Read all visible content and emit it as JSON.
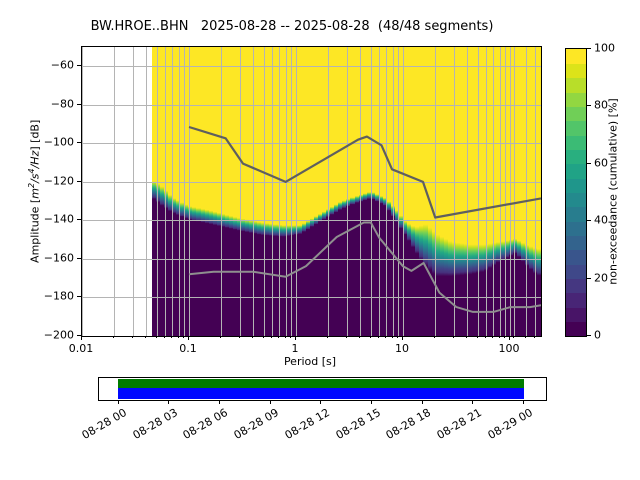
{
  "title": "BW.HROE..BHN   2025-08-28 -- 2025-08-28  (48/48 segments)",
  "axes": {
    "ylabel": {
      "pre": "Amplitude [",
      "m": "m",
      "m_sup": "2",
      "slash1": "/",
      "s": "s",
      "s_sup": "4",
      "slash2": "/",
      "hz": "Hz",
      "post": "] [dB]"
    },
    "xlabel": "Period [s]",
    "x_tick_labels": [
      "0.01",
      "0.1",
      "1",
      "10",
      "100"
    ],
    "x_tick_values": [
      0.01,
      0.1,
      1,
      10,
      100
    ],
    "y_tick_labels": [
      "−60",
      "−80",
      "−100",
      "−120",
      "−140",
      "−160",
      "−180",
      "−200"
    ],
    "y_tick_values": [
      -60,
      -80,
      -100,
      -120,
      -140,
      -160,
      -180,
      -200
    ]
  },
  "colorbar": {
    "label": "non-exceedance (cumulative) [%]",
    "tick_labels": [
      "0",
      "20",
      "40",
      "60",
      "80",
      "100"
    ],
    "tick_values": [
      0,
      20,
      40,
      60,
      80,
      100
    ],
    "colors_bottom_to_top": [
      "#440154",
      "#481467",
      "#482576",
      "#453781",
      "#3f4889",
      "#39558c",
      "#33638d",
      "#2d708e",
      "#287d8e",
      "#238a8d",
      "#1f968b",
      "#20a386",
      "#29af7f",
      "#3bbb75",
      "#52c569",
      "#70cf57",
      "#92d741",
      "#b8de29",
      "#dce319",
      "#fde725"
    ]
  },
  "chart_data": {
    "type": "heatmap",
    "title": "BW.HROE..BHN   2025-08-28 -- 2025-08-28  (48/48 segments)",
    "xlabel": "Period [s]",
    "ylabel": "Amplitude [m2/s4/Hz] [dB]",
    "x_scale": "log",
    "xlim": [
      0.01,
      195
    ],
    "ylim": [
      -200,
      -50
    ],
    "grid": true,
    "colormap": "viridis",
    "colorbar_label": "non-exceedance (cumulative) [%]",
    "colorbar_range": [
      0,
      100
    ],
    "data_period_range": [
      0.045,
      195
    ],
    "fill_top_color": "#fde725",
    "fill_bottom_color": "#440154",
    "band_colors_top_to_bottom": [
      "#fde725",
      "#c2df23",
      "#7ad151",
      "#44bf70",
      "#22a884",
      "#21918c",
      "#2a788e",
      "#355f8d",
      "#414487",
      "#46327e",
      "#440154"
    ],
    "distribution_band": {
      "comment": "period, dB where 100%-yellow ends, dB where 0%-purple begins",
      "points": [
        [
          0.045,
          -119,
          -128
        ],
        [
          0.055,
          -122,
          -132
        ],
        [
          0.07,
          -128,
          -136
        ],
        [
          0.1,
          -132.5,
          -139.5
        ],
        [
          0.16,
          -135,
          -142
        ],
        [
          0.28,
          -138.5,
          -145
        ],
        [
          0.47,
          -141,
          -147.5
        ],
        [
          0.75,
          -142.5,
          -148.5
        ],
        [
          1.1,
          -142.5,
          -147
        ],
        [
          1.7,
          -136.5,
          -140.5
        ],
        [
          2.6,
          -130.5,
          -134.5
        ],
        [
          3.6,
          -127.5,
          -131
        ],
        [
          5.0,
          -125,
          -128.5
        ],
        [
          6.9,
          -128.5,
          -132.5
        ],
        [
          8.6,
          -134,
          -140
        ],
        [
          10.7,
          -141,
          -148
        ],
        [
          13.2,
          -143.5,
          -156
        ],
        [
          16.4,
          -142,
          -164
        ],
        [
          20.4,
          -147,
          -169
        ],
        [
          28,
          -151,
          -169
        ],
        [
          43,
          -152.5,
          -168
        ],
        [
          59,
          -152.5,
          -166.5
        ],
        [
          82,
          -151,
          -161
        ],
        [
          112,
          -149.5,
          -157
        ],
        [
          140,
          -152.5,
          -163
        ],
        [
          175,
          -154.5,
          -168
        ],
        [
          195,
          -155,
          -169
        ]
      ]
    },
    "noise_models": {
      "high_noise_model": {
        "color": "#5f5f5f",
        "points": [
          [
            0.1,
            -91.5
          ],
          [
            0.22,
            -97.4
          ],
          [
            0.32,
            -110.5
          ],
          [
            0.8,
            -120.0
          ],
          [
            3.8,
            -98.1
          ],
          [
            4.6,
            -96.5
          ],
          [
            6.3,
            -101.0
          ],
          [
            7.9,
            -113.5
          ],
          [
            15.4,
            -120.0
          ],
          [
            20,
            -138.5
          ],
          [
            195,
            -128.6
          ]
        ]
      },
      "low_noise_model": {
        "color": "#8f8f8f",
        "points": [
          [
            0.1,
            -168.0
          ],
          [
            0.17,
            -166.7
          ],
          [
            0.4,
            -166.7
          ],
          [
            0.8,
            -169.2
          ],
          [
            1.24,
            -163.7
          ],
          [
            2.4,
            -148.6
          ],
          [
            4.3,
            -141.1
          ],
          [
            5.0,
            -141.1
          ],
          [
            6.0,
            -149.0
          ],
          [
            10,
            -163.8
          ],
          [
            12,
            -166.2
          ],
          [
            15.6,
            -162.1
          ],
          [
            21.9,
            -177.5
          ],
          [
            31.6,
            -185.0
          ],
          [
            45,
            -187.5
          ],
          [
            70,
            -187.5
          ],
          [
            101,
            -185.0
          ],
          [
            154,
            -185.0
          ],
          [
            195,
            -184.0
          ]
        ]
      }
    },
    "minor_grid_periods": [
      0.02,
      0.03,
      0.04,
      0.05,
      0.06,
      0.07,
      0.08,
      0.09,
      0.2,
      0.3,
      0.4,
      0.5,
      0.6,
      0.7,
      0.8,
      0.9,
      2,
      3,
      4,
      5,
      6,
      7,
      8,
      9,
      20,
      30,
      40,
      50,
      60,
      70,
      80,
      90,
      110,
      140,
      170
    ]
  },
  "timeline": {
    "tick_labels": [
      "08-28 00",
      "08-28 03",
      "08-28 06",
      "08-28 09",
      "08-28 12",
      "08-28 15",
      "08-28 18",
      "08-28 21",
      "08-29 00"
    ],
    "coverage_color": "#007b00",
    "segments_color": "#0008ff"
  }
}
